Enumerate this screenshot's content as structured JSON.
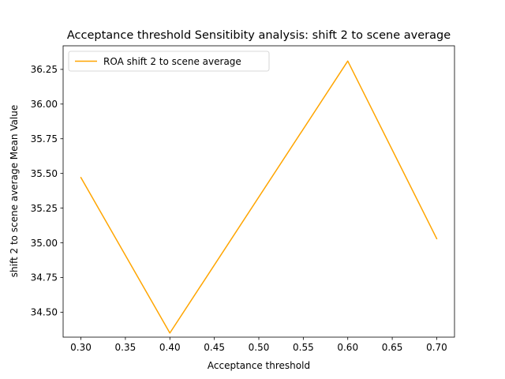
{
  "chart_data": {
    "type": "line",
    "title": "Acceptance threshold Sensitibity analysis: shift 2 to scene average",
    "xlabel": "Acceptance threshold",
    "ylabel": "shift 2 to scene average Mean Value",
    "xlim": [
      0.28,
      0.72
    ],
    "ylim": [
      34.32,
      36.42
    ],
    "xticks": [
      0.3,
      0.35,
      0.4,
      0.45,
      0.5,
      0.55,
      0.6,
      0.65,
      0.7
    ],
    "xtick_labels": [
      "0.30",
      "0.35",
      "0.40",
      "0.45",
      "0.50",
      "0.55",
      "0.60",
      "0.65",
      "0.70"
    ],
    "yticks": [
      34.5,
      34.75,
      35.0,
      35.25,
      35.5,
      35.75,
      36.0,
      36.25
    ],
    "ytick_labels": [
      "34.50",
      "34.75",
      "35.00",
      "35.25",
      "35.50",
      "35.75",
      "36.00",
      "36.25"
    ],
    "grid": false,
    "legend_placement": "top-left",
    "series": [
      {
        "name": "ROA shift 2 to scene average",
        "color": "#ffa500",
        "x": [
          0.3,
          0.4,
          0.6,
          0.7
        ],
        "y": [
          35.47,
          34.35,
          36.31,
          35.03
        ]
      }
    ]
  }
}
